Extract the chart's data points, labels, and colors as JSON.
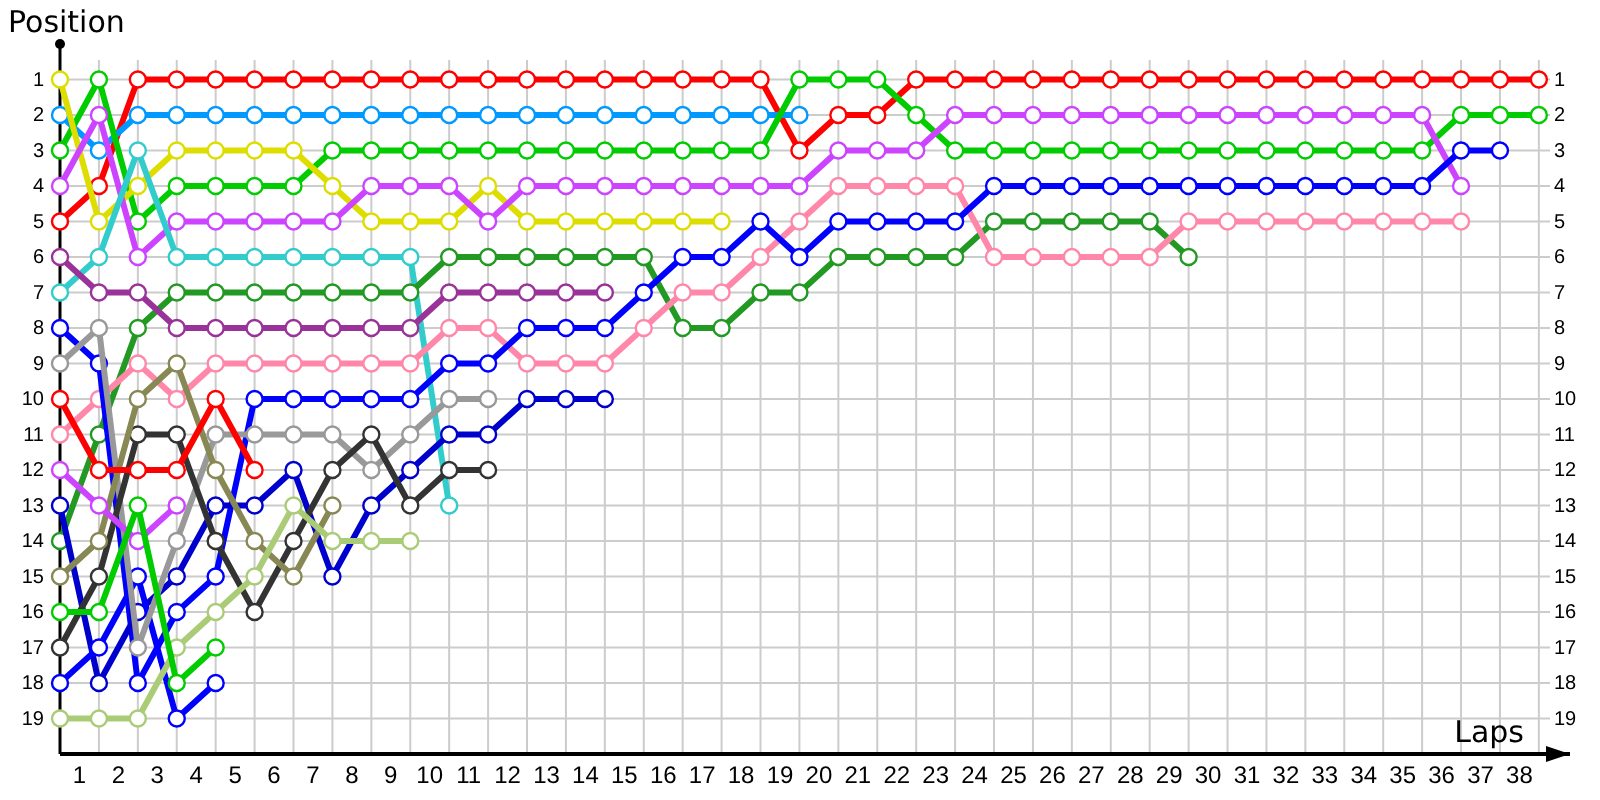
{
  "chart_data": {
    "type": "line",
    "xlabel": "Laps",
    "ylabel": "Position",
    "marker": "circle",
    "grid": true,
    "x": [
      0,
      1,
      2,
      3,
      4,
      5,
      6,
      7,
      8,
      9,
      10,
      11,
      12,
      13,
      14,
      15,
      16,
      17,
      18,
      19,
      20,
      21,
      22,
      23,
      24,
      25,
      26,
      27,
      28,
      29,
      30,
      31,
      32,
      33,
      34,
      35,
      36,
      37,
      38
    ],
    "xlim": [
      0,
      38.8
    ],
    "xticks": [
      {
        "value": 0,
        "label": null
      },
      {
        "value": 0.5,
        "label": "1"
      },
      {
        "value": 1,
        "label": null
      },
      {
        "value": 1.5,
        "label": "2"
      },
      {
        "value": 2,
        "label": null
      },
      {
        "value": 2.5,
        "label": "3"
      },
      {
        "value": 3,
        "label": null
      },
      {
        "value": 3.5,
        "label": "4"
      },
      {
        "value": 4,
        "label": null
      },
      {
        "value": 4.5,
        "label": "5"
      },
      {
        "value": 5,
        "label": null
      },
      {
        "value": 5.5,
        "label": "6"
      },
      {
        "value": 6,
        "label": null
      },
      {
        "value": 6.5,
        "label": "7"
      },
      {
        "value": 7,
        "label": null
      },
      {
        "value": 7.5,
        "label": "8"
      },
      {
        "value": 8,
        "label": null
      },
      {
        "value": 8.5,
        "label": "9"
      },
      {
        "value": 9,
        "label": null
      },
      {
        "value": 9.5,
        "label": "10"
      },
      {
        "value": 10,
        "label": null
      },
      {
        "value": 10.5,
        "label": "11"
      },
      {
        "value": 11,
        "label": null
      },
      {
        "value": 11.5,
        "label": "12"
      },
      {
        "value": 12,
        "label": null
      },
      {
        "value": 12.5,
        "label": "13"
      },
      {
        "value": 13,
        "label": null
      },
      {
        "value": 13.5,
        "label": "14"
      },
      {
        "value": 14,
        "label": null
      },
      {
        "value": 14.5,
        "label": "15"
      },
      {
        "value": 15,
        "label": null
      },
      {
        "value": 15.5,
        "label": "16"
      },
      {
        "value": 16,
        "label": null
      },
      {
        "value": 16.5,
        "label": "17"
      },
      {
        "value": 17,
        "label": null
      },
      {
        "value": 17.5,
        "label": "18"
      },
      {
        "value": 18,
        "label": null
      },
      {
        "value": 18.5,
        "label": "19"
      },
      {
        "value": 19,
        "label": null
      },
      {
        "value": 19.5,
        "label": "20"
      },
      {
        "value": 20,
        "label": null
      },
      {
        "value": 20.5,
        "label": "21"
      },
      {
        "value": 21,
        "label": null
      },
      {
        "value": 21.5,
        "label": "22"
      },
      {
        "value": 22,
        "label": null
      },
      {
        "value": 22.5,
        "label": "23"
      },
      {
        "value": 23,
        "label": null
      },
      {
        "value": 23.5,
        "label": "24"
      },
      {
        "value": 24,
        "label": null
      },
      {
        "value": 24.5,
        "label": "25"
      },
      {
        "value": 25,
        "label": null
      },
      {
        "value": 25.5,
        "label": "26"
      },
      {
        "value": 26,
        "label": null
      },
      {
        "value": 26.5,
        "label": "27"
      },
      {
        "value": 27,
        "label": null
      },
      {
        "value": 27.5,
        "label": "28"
      },
      {
        "value": 28,
        "label": null
      },
      {
        "value": 28.5,
        "label": "29"
      },
      {
        "value": 29,
        "label": null
      },
      {
        "value": 29.5,
        "label": "30"
      },
      {
        "value": 30,
        "label": null
      },
      {
        "value": 30.5,
        "label": "31"
      },
      {
        "value": 31,
        "label": null
      },
      {
        "value": 31.5,
        "label": "32"
      },
      {
        "value": 32,
        "label": null
      },
      {
        "value": 32.5,
        "label": "33"
      },
      {
        "value": 33,
        "label": null
      },
      {
        "value": 33.5,
        "label": "34"
      },
      {
        "value": 34,
        "label": null
      },
      {
        "value": 34.5,
        "label": "35"
      },
      {
        "value": 35,
        "label": null
      },
      {
        "value": 35.5,
        "label": "36"
      },
      {
        "value": 36,
        "label": null
      },
      {
        "value": 36.5,
        "label": "37"
      },
      {
        "value": 37,
        "label": null
      },
      {
        "value": 37.5,
        "label": "38"
      },
      {
        "value": 38,
        "label": null
      }
    ],
    "ylim": [
      20,
      0
    ],
    "yticks": [
      1,
      2,
      3,
      4,
      5,
      6,
      7,
      8,
      9,
      10,
      11,
      12,
      13,
      14,
      15,
      16,
      17,
      18,
      19
    ],
    "y2lim": [
      20,
      0
    ],
    "y2ticks": [
      1,
      2,
      3,
      4,
      5,
      6,
      7,
      8,
      9,
      10,
      11,
      12,
      13,
      14,
      15,
      16,
      17,
      18,
      19
    ],
    "series": [
      {
        "color": "#ff0000",
        "values": [
          5,
          4,
          1,
          1,
          1,
          1,
          1,
          1,
          1,
          1,
          1,
          1,
          1,
          1,
          1,
          1,
          1,
          1,
          1,
          3,
          2,
          2,
          1,
          1,
          1,
          1,
          1,
          1,
          1,
          1,
          1,
          1,
          1,
          1,
          1,
          1,
          1,
          1,
          1
        ]
      },
      {
        "color": "#0099ff",
        "values": [
          2,
          3,
          2,
          2,
          2,
          2,
          2,
          2,
          2,
          2,
          2,
          2,
          2,
          2,
          2,
          2,
          2,
          2,
          2,
          2,
          null,
          null,
          null,
          null,
          null,
          null,
          null,
          null,
          null,
          null,
          null,
          null,
          null,
          null,
          null,
          null,
          null,
          null,
          null
        ]
      },
      {
        "color": "#00cc00",
        "values": [
          3,
          1,
          5,
          4,
          4,
          4,
          4,
          3,
          3,
          3,
          3,
          3,
          3,
          3,
          3,
          3,
          3,
          3,
          3,
          1,
          1,
          1,
          2,
          3,
          3,
          3,
          3,
          3,
          3,
          3,
          3,
          3,
          3,
          3,
          3,
          3,
          2,
          2,
          2
        ]
      },
      {
        "color": "#dddd00",
        "values": [
          1,
          5,
          4,
          3,
          3,
          3,
          3,
          4,
          5,
          5,
          5,
          4,
          5,
          5,
          5,
          5,
          5,
          5,
          null,
          null,
          null,
          null,
          null,
          null,
          null,
          null,
          null,
          null,
          null,
          null,
          null,
          null,
          null,
          null,
          null,
          null,
          null,
          null,
          null
        ]
      },
      {
        "color": "#cc44ff",
        "values": [
          4,
          2,
          6,
          5,
          5,
          5,
          5,
          5,
          4,
          4,
          4,
          5,
          4,
          4,
          4,
          4,
          4,
          4,
          4,
          4,
          3,
          3,
          3,
          2,
          2,
          2,
          2,
          2,
          2,
          2,
          2,
          2,
          2,
          2,
          2,
          2,
          4,
          null,
          null
        ]
      },
      {
        "color": "#33cccc",
        "values": [
          7,
          6,
          3,
          6,
          6,
          6,
          6,
          6,
          6,
          6,
          13,
          null,
          null,
          null,
          null,
          null,
          null,
          null,
          null,
          null,
          null,
          null,
          null,
          null,
          null,
          null,
          null,
          null,
          null,
          null,
          null,
          null,
          null,
          null,
          null,
          null,
          null,
          null,
          null
        ]
      },
      {
        "color": "#229922",
        "values": [
          14,
          11,
          8,
          7,
          7,
          7,
          7,
          7,
          7,
          7,
          6,
          6,
          6,
          6,
          6,
          6,
          8,
          8,
          7,
          7,
          6,
          6,
          6,
          6,
          5,
          5,
          5,
          5,
          5,
          6,
          null,
          null,
          null,
          null,
          null,
          null,
          null,
          null,
          null
        ]
      },
      {
        "color": "#993399",
        "values": [
          6,
          7,
          7,
          8,
          8,
          8,
          8,
          8,
          8,
          8,
          7,
          7,
          7,
          7,
          7,
          null,
          null,
          null,
          null,
          null,
          null,
          null,
          null,
          null,
          null,
          null,
          null,
          null,
          null,
          null,
          null,
          null,
          null,
          null,
          null,
          null,
          null,
          null,
          null
        ]
      },
      {
        "color": "#ff88aa",
        "values": [
          11,
          10,
          9,
          10,
          9,
          9,
          9,
          9,
          9,
          9,
          8,
          8,
          9,
          9,
          9,
          8,
          7,
          7,
          6,
          5,
          4,
          4,
          4,
          4,
          6,
          6,
          6,
          6,
          6,
          5,
          5,
          5,
          5,
          5,
          5,
          5,
          5,
          null,
          null
        ]
      },
      {
        "color": "#0000ff",
        "values": [
          8,
          9,
          18,
          16,
          15,
          10,
          10,
          10,
          10,
          10,
          9,
          9,
          8,
          8,
          8,
          7,
          6,
          6,
          5,
          6,
          5,
          5,
          5,
          5,
          4,
          4,
          4,
          4,
          4,
          4,
          4,
          4,
          4,
          4,
          4,
          4,
          3,
          3,
          null
        ]
      },
      {
        "color": "#0000cc",
        "values": [
          13,
          18,
          16,
          15,
          13,
          13,
          12,
          15,
          13,
          12,
          11,
          11,
          10,
          10,
          10,
          null,
          null,
          null,
          null,
          null,
          null,
          null,
          null,
          null,
          null,
          null,
          null,
          null,
          null,
          null,
          null,
          null,
          null,
          null,
          null,
          null,
          null,
          null,
          null
        ]
      },
      {
        "color": "#0000ff",
        "values": [
          18,
          17,
          15,
          19,
          18,
          null,
          null,
          null,
          null,
          null,
          null,
          null,
          null,
          null,
          null,
          null,
          null,
          null,
          null,
          null,
          null,
          null,
          null,
          null,
          null,
          null,
          null,
          null,
          null,
          null,
          null,
          null,
          null,
          null,
          null,
          null,
          null,
          null,
          null
        ]
      },
      {
        "color": "#999999",
        "values": [
          9,
          8,
          17,
          14,
          11,
          11,
          11,
          11,
          12,
          11,
          10,
          10,
          null,
          null,
          null,
          null,
          null,
          null,
          null,
          null,
          null,
          null,
          null,
          null,
          null,
          null,
          null,
          null,
          null,
          null,
          null,
          null,
          null,
          null,
          null,
          null,
          null,
          null,
          null
        ]
      },
      {
        "color": "#333333",
        "values": [
          17,
          15,
          11,
          11,
          14,
          16,
          14,
          12,
          11,
          13,
          12,
          12,
          null,
          null,
          null,
          null,
          null,
          null,
          null,
          null,
          null,
          null,
          null,
          null,
          null,
          null,
          null,
          null,
          null,
          null,
          null,
          null,
          null,
          null,
          null,
          null,
          null,
          null,
          null
        ]
      },
      {
        "color": "#888855",
        "values": [
          15,
          14,
          10,
          9,
          12,
          14,
          15,
          13,
          null,
          null,
          null,
          null,
          null,
          null,
          null,
          null,
          null,
          null,
          null,
          null,
          null,
          null,
          null,
          null,
          null,
          null,
          null,
          null,
          null,
          null,
          null,
          null,
          null,
          null,
          null,
          null,
          null,
          null,
          null
        ]
      },
      {
        "color": "#aacc77",
        "values": [
          19,
          19,
          19,
          17,
          16,
          15,
          13,
          14,
          14,
          14,
          null,
          null,
          null,
          null,
          null,
          null,
          null,
          null,
          null,
          null,
          null,
          null,
          null,
          null,
          null,
          null,
          null,
          null,
          null,
          null,
          null,
          null,
          null,
          null,
          null,
          null,
          null,
          null,
          null
        ]
      },
      {
        "color": "#ff0000",
        "values": [
          10,
          12,
          12,
          12,
          10,
          12,
          null,
          null,
          null,
          null,
          null,
          null,
          null,
          null,
          null,
          null,
          null,
          null,
          null,
          null,
          null,
          null,
          null,
          null,
          null,
          null,
          null,
          null,
          null,
          null,
          null,
          null,
          null,
          null,
          null,
          null,
          null,
          null,
          null
        ]
      },
      {
        "color": "#cc44ff",
        "values": [
          12,
          13,
          14,
          13,
          null,
          null,
          null,
          null,
          null,
          null,
          null,
          null,
          null,
          null,
          null,
          null,
          null,
          null,
          null,
          null,
          null,
          null,
          null,
          null,
          null,
          null,
          null,
          null,
          null,
          null,
          null,
          null,
          null,
          null,
          null,
          null,
          null,
          null,
          null
        ]
      },
      {
        "color": "#00cc00",
        "values": [
          16,
          16,
          13,
          18,
          17,
          null,
          null,
          null,
          null,
          null,
          null,
          null,
          null,
          null,
          null,
          null,
          null,
          null,
          null,
          null,
          null,
          null,
          null,
          null,
          null,
          null,
          null,
          null,
          null,
          null,
          null,
          null,
          null,
          null,
          null,
          null,
          null,
          null,
          null
        ]
      }
    ]
  }
}
